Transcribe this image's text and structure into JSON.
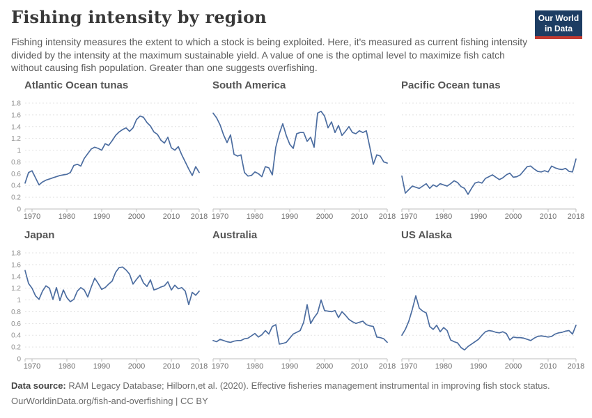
{
  "header": {
    "title": "Fishing intensity by region",
    "subtitle": "Fishing intensity measures the extent to which a stock is being exploited. Here, it's measured as current fishing intensity divided by the intensity at the maximum sustainable yield. A value of one is the optimal level to maximize fish catch without causing fish population. Greater than one suggests overfishing.",
    "logo": {
      "line1": "Our World",
      "line2": "in Data"
    }
  },
  "footer": {
    "source_label": "Data source:",
    "source_text": " RAM Legacy Database; Hilborn,et al. (2020). Effective fisheries management instrumental in improving fish stock status.",
    "link_text": "OurWorldinData.org/fish-and-overfishing | CC BY"
  },
  "colors": {
    "line": "#4c6da0",
    "grid": "#e3e3e3",
    "axis": "#bdbdbd",
    "x_label": "#6e6e6e",
    "y_label": "#8c8c8c",
    "logo_bg": "#1d3d63",
    "logo_bar": "#c23a30"
  },
  "chart_data": [
    {
      "type": "line",
      "title": "Atlantic Ocean tunas",
      "show_y_labels": true,
      "x_range": [
        1968,
        2018
      ],
      "x_ticks": [
        1970,
        1980,
        1990,
        2000,
        2010,
        2018
      ],
      "ylim": [
        0,
        1.8
      ],
      "y_ticks": [
        0,
        0.2,
        0.4,
        0.6,
        0.8,
        1,
        1.2,
        1.4,
        1.6,
        1.8
      ],
      "x_start": 1968,
      "values": [
        0.44,
        0.62,
        0.65,
        0.53,
        0.41,
        0.46,
        0.49,
        0.51,
        0.53,
        0.55,
        0.57,
        0.58,
        0.59,
        0.62,
        0.74,
        0.76,
        0.73,
        0.86,
        0.94,
        1.02,
        1.05,
        1.03,
        1.0,
        1.11,
        1.08,
        1.16,
        1.25,
        1.31,
        1.35,
        1.38,
        1.32,
        1.38,
        1.52,
        1.58,
        1.56,
        1.47,
        1.41,
        1.31,
        1.27,
        1.17,
        1.12,
        1.22,
        1.04,
        1.0,
        1.06,
        0.92,
        0.8,
        0.68,
        0.57,
        0.72,
        0.62
      ]
    },
    {
      "type": "line",
      "title": "South America",
      "show_y_labels": false,
      "x_range": [
        1968,
        2018
      ],
      "x_ticks": [
        1970,
        1980,
        1990,
        2000,
        2010,
        2018
      ],
      "ylim": [
        0,
        1.8
      ],
      "y_ticks": [
        0,
        0.2,
        0.4,
        0.6,
        0.8,
        1,
        1.2,
        1.4,
        1.6,
        1.8
      ],
      "x_start": 1968,
      "values": [
        1.63,
        1.55,
        1.43,
        1.26,
        1.13,
        1.26,
        0.93,
        0.9,
        0.92,
        0.62,
        0.56,
        0.57,
        0.63,
        0.6,
        0.55,
        0.72,
        0.7,
        0.58,
        1.05,
        1.28,
        1.45,
        1.25,
        1.1,
        1.03,
        1.28,
        1.3,
        1.3,
        1.15,
        1.22,
        1.05,
        1.63,
        1.66,
        1.58,
        1.38,
        1.48,
        1.3,
        1.42,
        1.25,
        1.32,
        1.4,
        1.3,
        1.28,
        1.33,
        1.3,
        1.33,
        1.05,
        0.76,
        0.92,
        0.9,
        0.8,
        0.78
      ]
    },
    {
      "type": "line",
      "title": "Pacific Ocean tunas",
      "show_y_labels": false,
      "x_range": [
        1968,
        2018
      ],
      "x_ticks": [
        1970,
        1980,
        1990,
        2000,
        2010,
        2018
      ],
      "ylim": [
        0,
        1.8
      ],
      "y_ticks": [
        0,
        0.2,
        0.4,
        0.6,
        0.8,
        1,
        1.2,
        1.4,
        1.6,
        1.8
      ],
      "x_start": 1968,
      "values": [
        0.56,
        0.27,
        0.33,
        0.39,
        0.37,
        0.35,
        0.39,
        0.43,
        0.35,
        0.41,
        0.38,
        0.43,
        0.41,
        0.39,
        0.43,
        0.48,
        0.45,
        0.38,
        0.35,
        0.25,
        0.35,
        0.44,
        0.46,
        0.44,
        0.52,
        0.55,
        0.58,
        0.54,
        0.5,
        0.53,
        0.58,
        0.61,
        0.54,
        0.55,
        0.58,
        0.65,
        0.72,
        0.73,
        0.68,
        0.64,
        0.63,
        0.65,
        0.63,
        0.73,
        0.7,
        0.68,
        0.67,
        0.69,
        0.64,
        0.63,
        0.85
      ]
    },
    {
      "type": "line",
      "title": "Japan",
      "show_y_labels": true,
      "x_range": [
        1968,
        2018
      ],
      "x_ticks": [
        1970,
        1980,
        1990,
        2000,
        2010,
        2018
      ],
      "ylim": [
        0,
        1.8
      ],
      "y_ticks": [
        0,
        0.2,
        0.4,
        0.6,
        0.8,
        1,
        1.2,
        1.4,
        1.6,
        1.8
      ],
      "x_start": 1968,
      "values": [
        1.5,
        1.28,
        1.2,
        1.07,
        1.01,
        1.15,
        1.24,
        1.2,
        1.01,
        1.21,
        0.99,
        1.17,
        1.04,
        0.97,
        1.01,
        1.15,
        1.21,
        1.17,
        1.05,
        1.22,
        1.37,
        1.28,
        1.18,
        1.21,
        1.27,
        1.32,
        1.47,
        1.55,
        1.56,
        1.51,
        1.44,
        1.27,
        1.35,
        1.42,
        1.29,
        1.23,
        1.34,
        1.17,
        1.19,
        1.22,
        1.24,
        1.31,
        1.17,
        1.25,
        1.19,
        1.21,
        1.15,
        0.92,
        1.13,
        1.08,
        1.15
      ]
    },
    {
      "type": "line",
      "title": "Australia",
      "show_y_labels": false,
      "x_range": [
        1968,
        2018
      ],
      "x_ticks": [
        1970,
        1980,
        1990,
        2000,
        2010,
        2018
      ],
      "ylim": [
        0,
        1.8
      ],
      "y_ticks": [
        0,
        0.2,
        0.4,
        0.6,
        0.8,
        1,
        1.2,
        1.4,
        1.6,
        1.8
      ],
      "x_start": 1968,
      "values": [
        0.31,
        0.29,
        0.33,
        0.31,
        0.29,
        0.28,
        0.3,
        0.31,
        0.31,
        0.34,
        0.35,
        0.39,
        0.43,
        0.37,
        0.41,
        0.48,
        0.42,
        0.55,
        0.58,
        0.25,
        0.26,
        0.28,
        0.35,
        0.42,
        0.45,
        0.48,
        0.62,
        0.92,
        0.6,
        0.7,
        0.78,
        1.0,
        0.82,
        0.81,
        0.8,
        0.82,
        0.7,
        0.8,
        0.74,
        0.67,
        0.63,
        0.6,
        0.62,
        0.64,
        0.58,
        0.56,
        0.55,
        0.37,
        0.36,
        0.34,
        0.28
      ]
    },
    {
      "type": "line",
      "title": "US Alaska",
      "show_y_labels": false,
      "x_range": [
        1968,
        2018
      ],
      "x_ticks": [
        1970,
        1980,
        1990,
        2000,
        2010,
        2018
      ],
      "ylim": [
        0,
        1.8
      ],
      "y_ticks": [
        0,
        0.2,
        0.4,
        0.6,
        0.8,
        1,
        1.2,
        1.4,
        1.6,
        1.8
      ],
      "x_start": 1968,
      "values": [
        0.4,
        0.5,
        0.64,
        0.84,
        1.07,
        0.86,
        0.81,
        0.78,
        0.55,
        0.5,
        0.57,
        0.46,
        0.53,
        0.48,
        0.32,
        0.29,
        0.27,
        0.19,
        0.15,
        0.21,
        0.25,
        0.29,
        0.33,
        0.4,
        0.46,
        0.48,
        0.47,
        0.45,
        0.44,
        0.46,
        0.43,
        0.32,
        0.37,
        0.36,
        0.36,
        0.35,
        0.33,
        0.31,
        0.35,
        0.38,
        0.39,
        0.38,
        0.37,
        0.38,
        0.42,
        0.44,
        0.45,
        0.47,
        0.48,
        0.42,
        0.57
      ]
    }
  ]
}
